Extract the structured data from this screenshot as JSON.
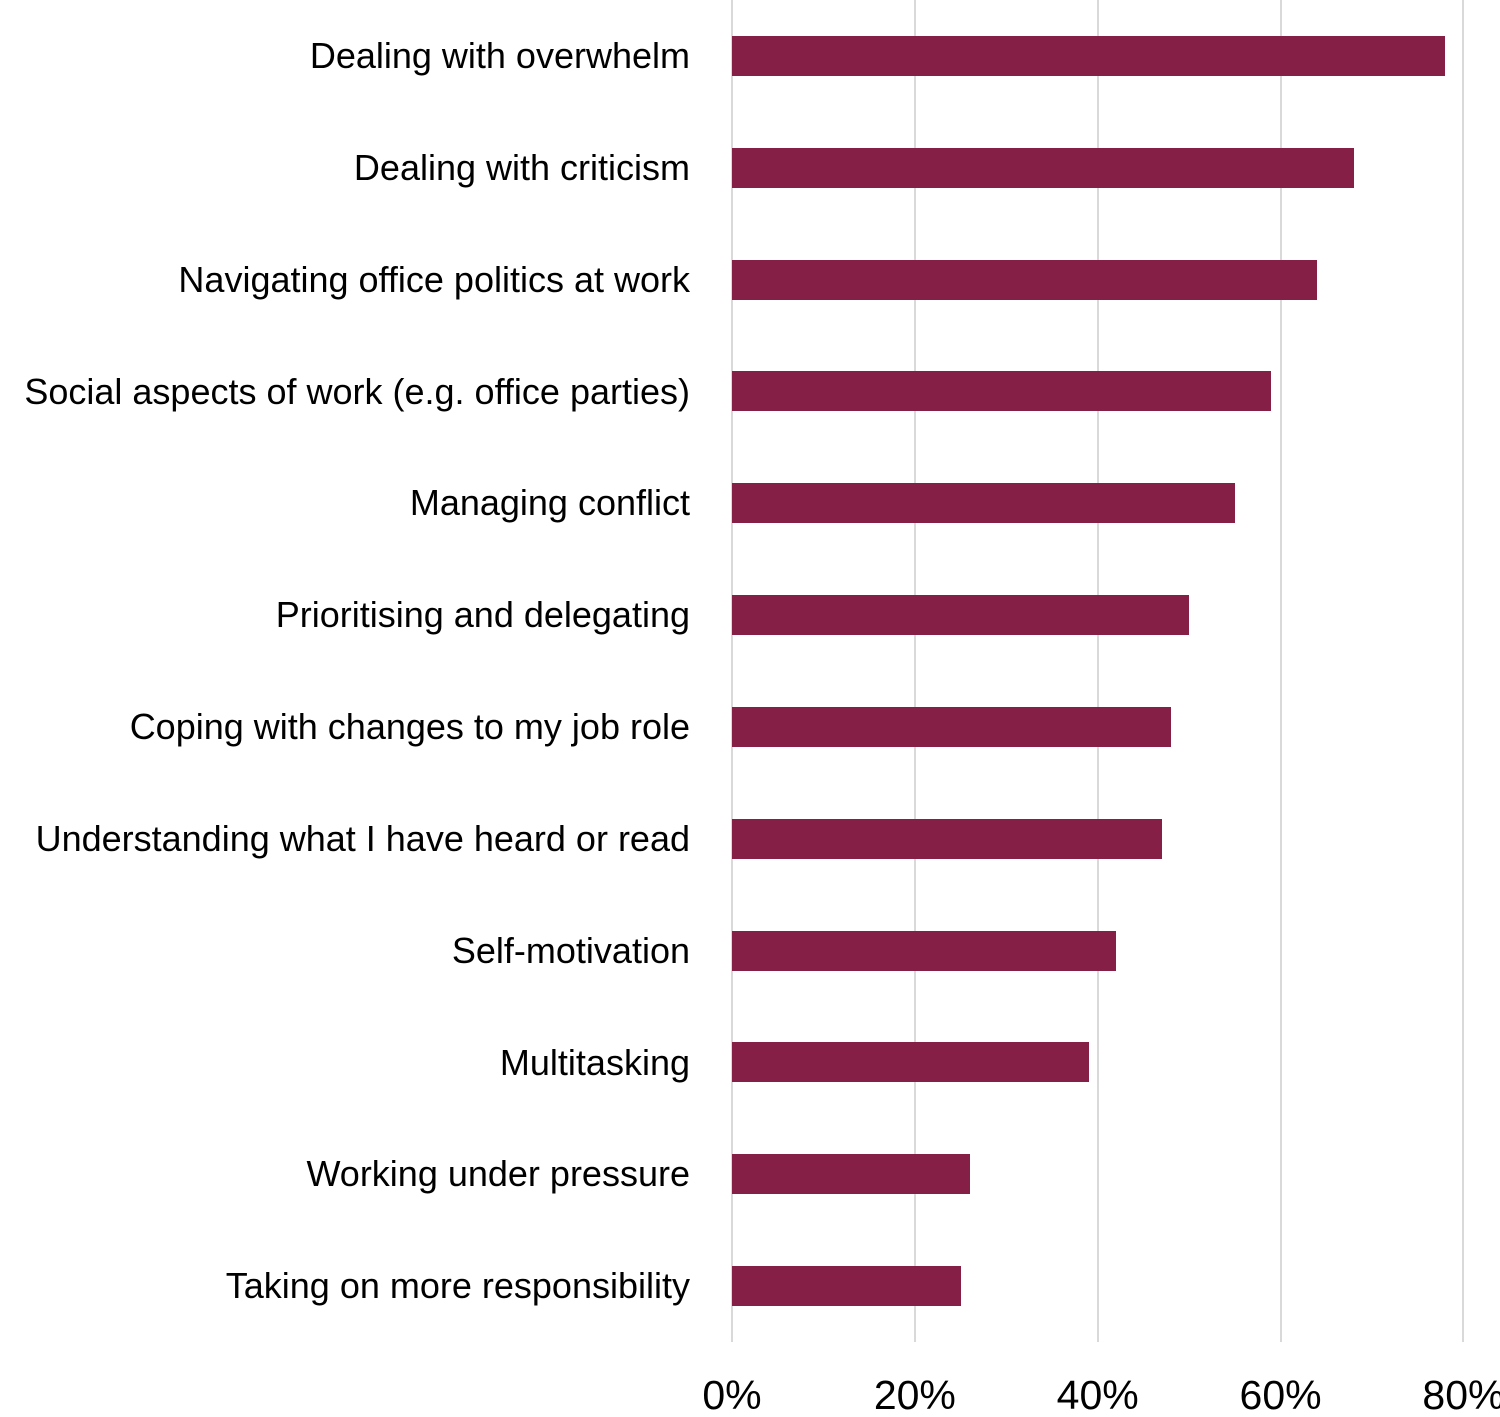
{
  "chart_data": {
    "type": "bar",
    "orientation": "horizontal",
    "title": "",
    "xlabel": "",
    "ylabel": "",
    "categories": [
      "Dealing with overwhelm",
      "Dealing with criticism",
      "Navigating office politics at work",
      "Social aspects of work (e.g. office parties)",
      "Managing conflict",
      "Prioritising and delegating",
      "Coping with changes to my job role",
      "Understanding what I have heard or read",
      "Self-motivation",
      "Multitasking",
      "Working under pressure",
      "Taking on more responsibility"
    ],
    "values": [
      78,
      68,
      64,
      59,
      55,
      50,
      48,
      47,
      42,
      39,
      26,
      25
    ],
    "value_unit": "%",
    "x_axis": {
      "ticks": [
        0,
        20,
        40,
        60,
        80
      ],
      "tick_labels": [
        "0%",
        "20%",
        "40%",
        "60%",
        "80%"
      ],
      "xlim": [
        0,
        84
      ]
    },
    "grid": "vertical",
    "legend_position": "none",
    "style": {
      "bar_color": "#851F45",
      "gridline_color": "#D9D9D9",
      "text_color": "#000000",
      "background_color": "#FFFFFF"
    }
  }
}
